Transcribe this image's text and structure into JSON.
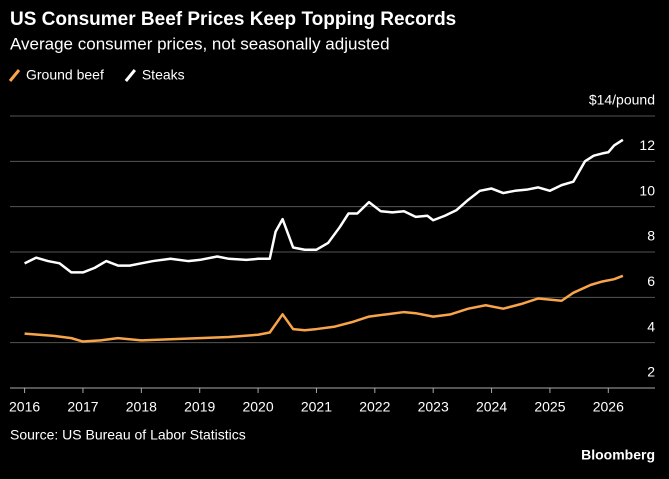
{
  "chart_data": {
    "type": "line",
    "title": "US Consumer Beef Prices Keep Topping Records",
    "subtitle": "Average consumer prices, not seasonally adjusted",
    "source": "Source: US Bureau of Labor Statistics",
    "brand": "Bloomberg",
    "xlim": [
      2015.75,
      2026.8
    ],
    "xticks": [
      2016,
      2017,
      2018,
      2019,
      2020,
      2021,
      2022,
      2023,
      2024,
      2025,
      2026
    ],
    "ylim": [
      2,
      14
    ],
    "yticks": [
      2,
      4,
      6,
      8,
      10,
      12,
      {
        "value": 14,
        "label": "$14/pound"
      }
    ],
    "grid": true,
    "series": [
      {
        "name": "Ground beef",
        "color": "#f7a44a",
        "x": [
          2016.0,
          2016.5,
          2016.8,
          2017.0,
          2017.3,
          2017.6,
          2018.0,
          2018.5,
          2019.0,
          2019.5,
          2020.0,
          2020.2,
          2020.42,
          2020.6,
          2020.8,
          2021.0,
          2021.3,
          2021.6,
          2021.9,
          2022.2,
          2022.5,
          2022.7,
          2023.0,
          2023.3,
          2023.6,
          2023.9,
          2024.2,
          2024.5,
          2024.8,
          2025.0,
          2025.2,
          2025.4,
          2025.7,
          2025.9,
          2026.1,
          2026.25
        ],
        "values": [
          4.4,
          4.3,
          4.2,
          4.05,
          4.1,
          4.2,
          4.1,
          4.15,
          4.2,
          4.25,
          4.35,
          4.45,
          5.25,
          4.6,
          4.55,
          4.6,
          4.7,
          4.9,
          5.15,
          5.25,
          5.35,
          5.3,
          5.15,
          5.25,
          5.5,
          5.65,
          5.5,
          5.7,
          5.95,
          5.9,
          5.85,
          6.2,
          6.55,
          6.7,
          6.8,
          6.95
        ]
      },
      {
        "name": "Steaks",
        "color": "#ffffff",
        "x": [
          2016.0,
          2016.2,
          2016.4,
          2016.6,
          2016.8,
          2017.0,
          2017.2,
          2017.4,
          2017.6,
          2017.8,
          2018.0,
          2018.2,
          2018.5,
          2018.8,
          2019.0,
          2019.3,
          2019.5,
          2019.8,
          2020.0,
          2020.2,
          2020.3,
          2020.42,
          2020.6,
          2020.8,
          2021.0,
          2021.2,
          2021.4,
          2021.55,
          2021.7,
          2021.9,
          2022.1,
          2022.3,
          2022.5,
          2022.7,
          2022.9,
          2023.0,
          2023.2,
          2023.4,
          2023.6,
          2023.8,
          2024.0,
          2024.2,
          2024.4,
          2024.6,
          2024.8,
          2025.0,
          2025.2,
          2025.4,
          2025.6,
          2025.75,
          2025.9,
          2026.0,
          2026.1,
          2026.25
        ],
        "values": [
          7.5,
          7.75,
          7.6,
          7.5,
          7.1,
          7.1,
          7.3,
          7.6,
          7.4,
          7.4,
          7.5,
          7.6,
          7.7,
          7.6,
          7.65,
          7.8,
          7.7,
          7.65,
          7.7,
          7.7,
          8.9,
          9.45,
          8.2,
          8.1,
          8.1,
          8.4,
          9.1,
          9.7,
          9.7,
          10.2,
          9.8,
          9.75,
          9.8,
          9.55,
          9.6,
          9.4,
          9.6,
          9.85,
          10.3,
          10.7,
          10.8,
          10.6,
          10.7,
          10.75,
          10.85,
          10.7,
          10.95,
          11.1,
          12.0,
          12.25,
          12.35,
          12.4,
          12.7,
          12.95
        ]
      }
    ]
  }
}
